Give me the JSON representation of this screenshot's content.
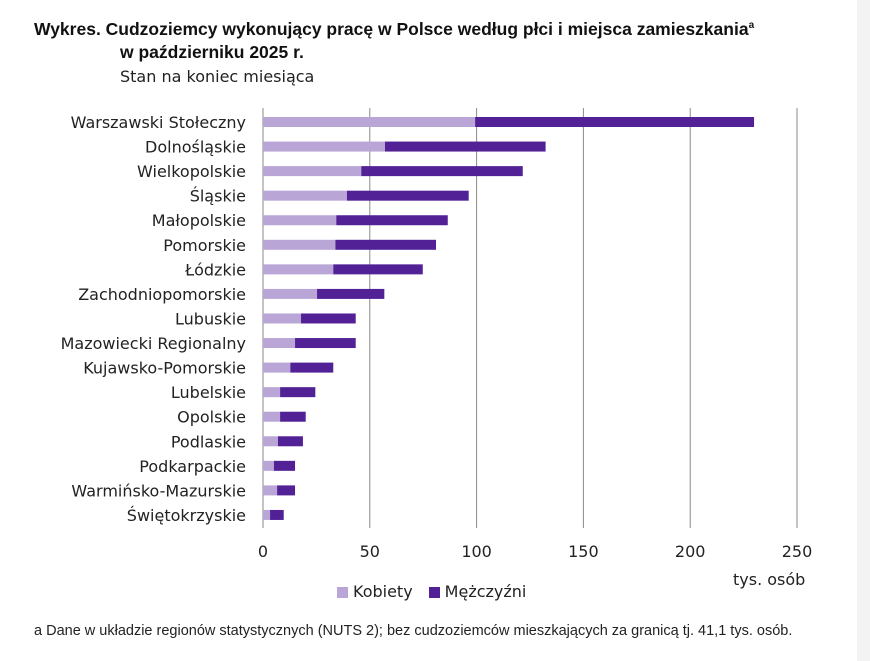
{
  "title": {
    "line1": "Wykres. Cudzoziemcy wykonujący pracę w Polsce według płci i miejsca zamieszkania",
    "line1_sup": "a",
    "line2": "w październiku 2025 r.",
    "subtitle": "Stan na koniec miesiąca"
  },
  "colors": {
    "kobiety": "#b9a6d6",
    "mezczyzni": "#522196",
    "grid": "#8a8a8a"
  },
  "chart_data": {
    "type": "bar",
    "orientation": "horizontal",
    "stacked": true,
    "categories": [
      "Warszawski Stołeczny",
      "Dolnośląskie",
      "Wielkopolskie",
      "Śląskie",
      "Małopolskie",
      "Pomorskie",
      "Łódzkie",
      "Zachodniopomorskie",
      "Lubuskie",
      "Mazowiecki Regionalny",
      "Kujawsko-Pomorskie",
      "Lubelskie",
      "Opolskie",
      "Podlaskie",
      "Podkarpackie",
      "Warmińsko-Mazurskie",
      "Świętokrzyskie"
    ],
    "series": [
      {
        "name": "Kobiety",
        "values": [
          99.3,
          57.1,
          46.0,
          39.3,
          34.3,
          33.9,
          32.9,
          25.3,
          17.8,
          15.0,
          12.8,
          8.0,
          8.0,
          7.0,
          5.1,
          6.6,
          3.3
        ]
      },
      {
        "name": "Mężczyźni",
        "values": [
          130.6,
          75.2,
          75.6,
          57.0,
          52.2,
          47.1,
          41.9,
          31.5,
          25.6,
          28.4,
          20.1,
          16.5,
          12.0,
          11.7,
          9.9,
          8.4,
          6.4
        ]
      }
    ],
    "xlim": [
      0,
      250
    ],
    "xticks": [
      "0",
      "50",
      "100",
      "150",
      "200",
      "250"
    ],
    "xlabel": "tys. osób",
    "grid": true,
    "legend": "bottom"
  },
  "footnote": "a Dane w układzie regionów statystycznych (NUTS 2); bez cudzoziemców mieszkających za granicą tj. 41,1 tys. osób."
}
